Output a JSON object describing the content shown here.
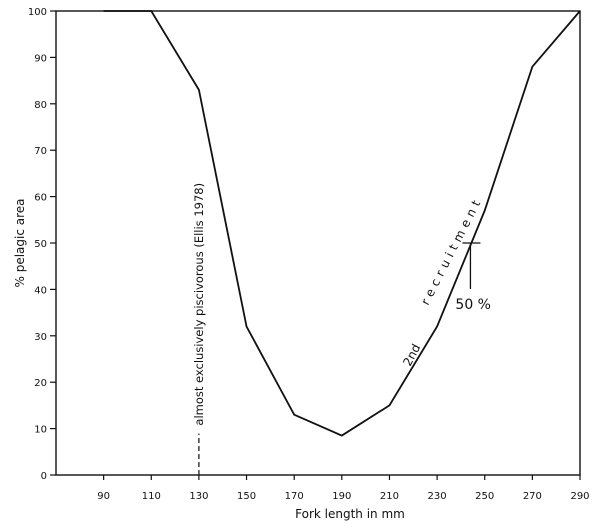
{
  "chart_data": {
    "type": "line",
    "title": "",
    "xlabel": "Fork length in mm",
    "ylabel": "% pelagic area",
    "xlim": [
      70,
      290
    ],
    "ylim": [
      0,
      100
    ],
    "grid": false,
    "x_ticks": [
      90,
      110,
      130,
      150,
      170,
      190,
      210,
      230,
      250,
      270,
      290
    ],
    "y_ticks": [
      0,
      10,
      20,
      30,
      40,
      50,
      60,
      70,
      80,
      90,
      100
    ],
    "x_tick_labels": [
      "90",
      "110",
      "130",
      "150",
      "170",
      "190",
      "210",
      "230",
      "250",
      "270",
      "290"
    ],
    "y_tick_labels": [
      "0",
      "10",
      "20",
      "30",
      "40",
      "50",
      "60",
      "70",
      "80",
      "90",
      "100"
    ],
    "series": [
      {
        "x": [
          90,
          110,
          130,
          150,
          170,
          190,
          210,
          230,
          250,
          270,
          290
        ],
        "y": [
          100,
          100,
          83,
          32,
          13,
          8.5,
          15,
          32,
          57,
          88,
          100
        ],
        "color": "#111111"
      }
    ],
    "annotations": {
      "piscivorous": {
        "text": "almost exclusively piscivorous (Ellis 1978)",
        "x": 130,
        "line_to_y": 0
      },
      "recruitment_2nd": "2nd",
      "recruitment_word": "recruitment",
      "fifty": {
        "text": "50 %",
        "x": 244,
        "y": 50
      }
    }
  }
}
